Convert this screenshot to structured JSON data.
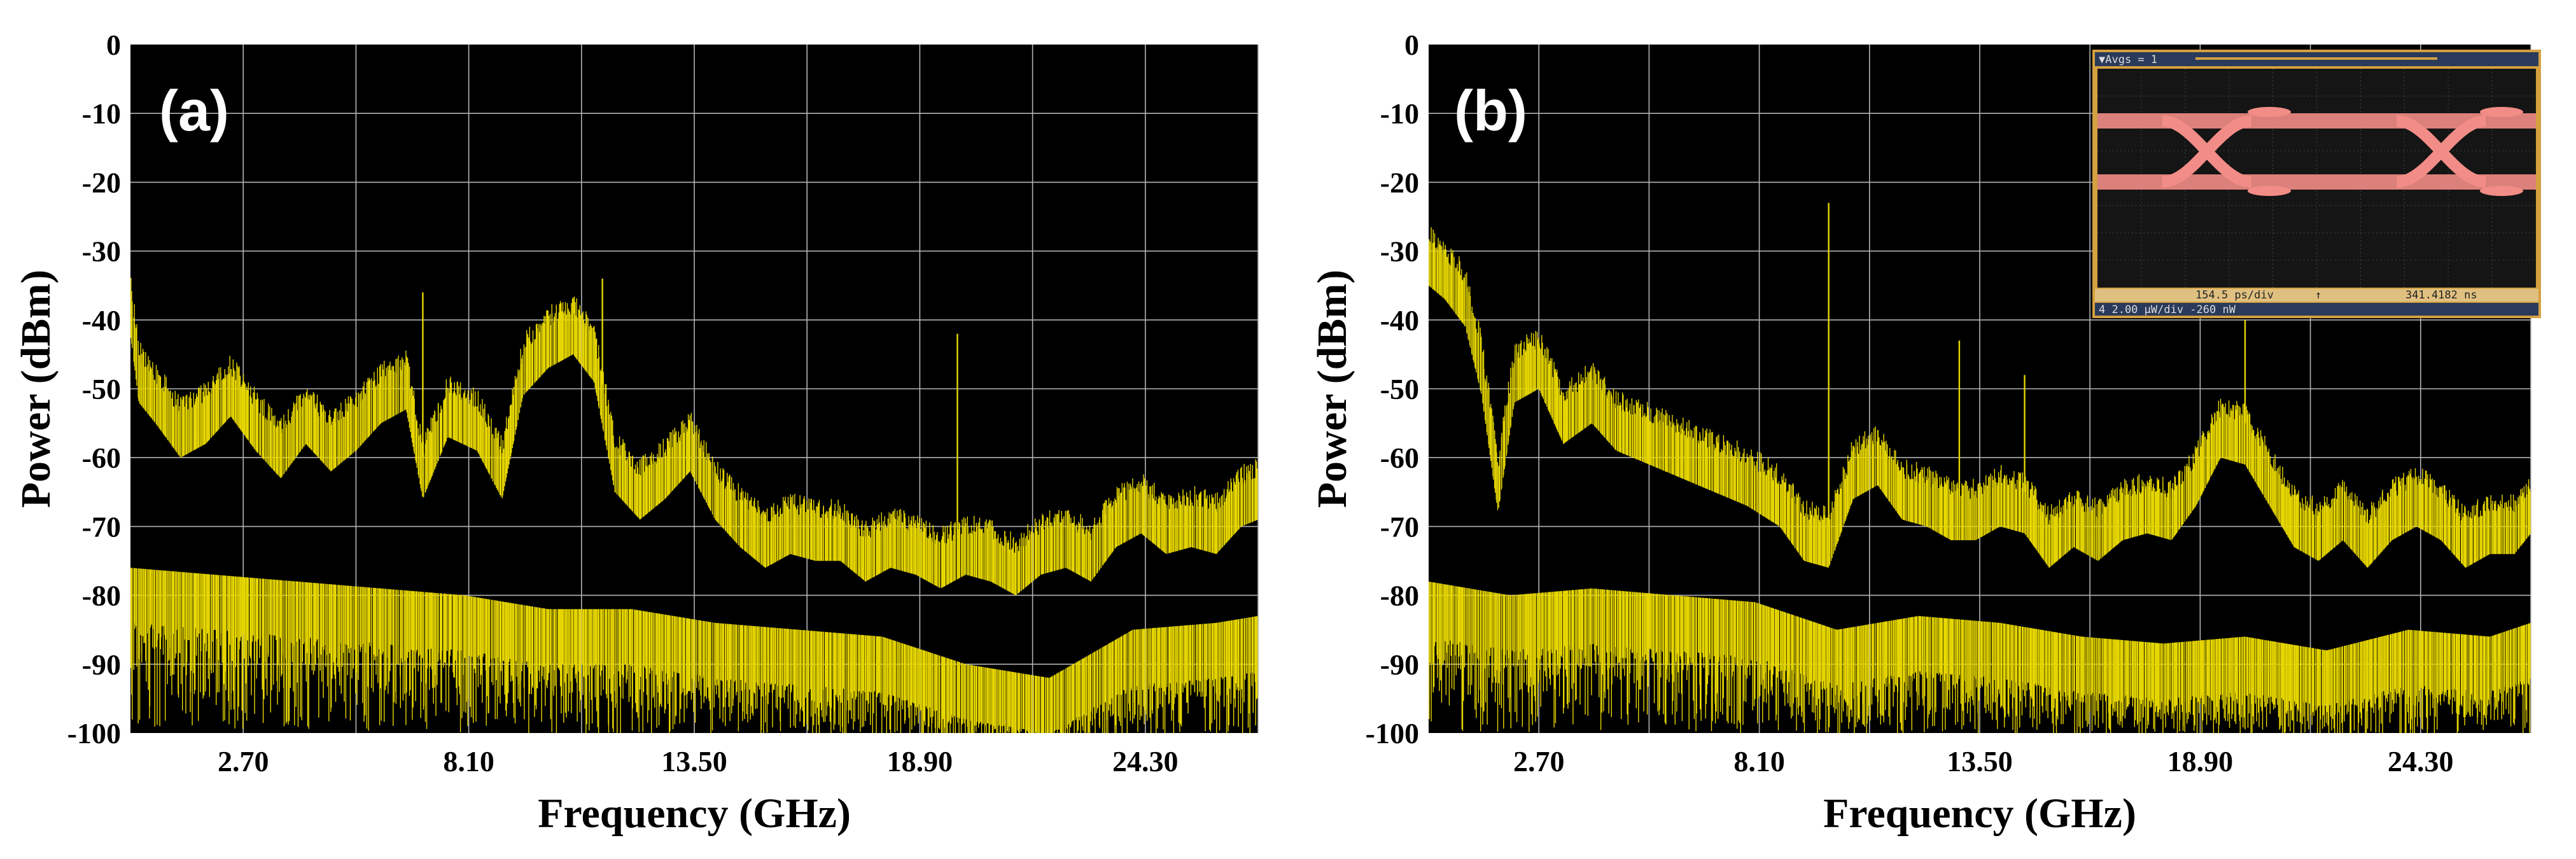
{
  "figure": {
    "colors": {
      "trace": "#e6d600",
      "plot_background": "#000000",
      "grid": "#b4b4b4",
      "eye_trace": "#f28c86",
      "inset_frame": "#d4a040"
    }
  },
  "chart_data": [
    {
      "type": "line",
      "panel_label": "(a)",
      "xlabel": "Frequency (GHz)",
      "ylabel": "Power (dBm)",
      "xlim": [
        0,
        27.0
      ],
      "ylim": [
        -100,
        0
      ],
      "x_ticks": [
        2.7,
        8.1,
        13.5,
        18.9,
        24.3
      ],
      "x_tick_labels": [
        "2.70",
        "8.10",
        "13.50",
        "18.90",
        "24.30"
      ],
      "y_ticks": [
        0,
        -10,
        -20,
        -30,
        -40,
        -50,
        -60,
        -70,
        -80,
        -90,
        -100
      ],
      "y_tick_labels": [
        "0",
        "-10",
        "-20",
        "-30",
        "-40",
        "-50",
        "-60",
        "-70",
        "-80",
        "-90",
        "-100"
      ],
      "grid": true,
      "series": [
        {
          "role": "peak-envelope",
          "x": [
            0,
            0.2,
            0.6,
            1.2,
            1.8,
            2.4,
            3.0,
            3.6,
            4.2,
            4.8,
            5.4,
            6.0,
            6.6,
            7.0,
            7.6,
            8.3,
            8.9,
            9.4,
            10.0,
            10.6,
            11.1,
            11.6,
            12.2,
            12.8,
            13.4,
            14.0,
            14.6,
            15.2,
            15.8,
            16.4,
            17.0,
            17.6,
            18.2,
            18.8,
            19.4,
            20.0,
            20.6,
            21.2,
            21.8,
            22.4,
            23.0,
            23.6,
            24.2,
            24.8,
            25.4,
            26.0,
            26.6,
            27.0
          ],
          "y": [
            -36,
            -46,
            -49,
            -54,
            -52,
            -48,
            -53,
            -57,
            -52,
            -56,
            -53,
            -49,
            -47,
            -60,
            -51,
            -53,
            -60,
            -45,
            -41,
            -39,
            -43,
            -59,
            -63,
            -60,
            -56,
            -63,
            -67,
            -70,
            -68,
            -69,
            -69,
            -72,
            -70,
            -71,
            -73,
            -71,
            -72,
            -74,
            -71,
            -70,
            -72,
            -67,
            -65,
            -68,
            -67,
            -68,
            -64,
            -63
          ]
        },
        {
          "role": "lower-noise-envelope",
          "x": [
            0,
            2,
            4,
            6,
            8,
            10,
            12,
            14,
            16,
            18,
            20,
            22,
            24,
            26,
            27
          ],
          "y": [
            -82,
            -83,
            -84,
            -85,
            -86,
            -88,
            -88,
            -90,
            -91,
            -92,
            -96,
            -98,
            -91,
            -90,
            -89
          ]
        }
      ],
      "spurs": [
        {
          "x": 7.0,
          "y": -36
        },
        {
          "x": 10.6,
          "y": -37
        },
        {
          "x": 11.3,
          "y": -34
        },
        {
          "x": 19.8,
          "y": -42
        },
        {
          "x": 16.3,
          "y": -66
        }
      ]
    },
    {
      "type": "line",
      "panel_label": "(b)",
      "xlabel": "Frequency (GHz)",
      "ylabel": "Power (dBm)",
      "xlim": [
        0,
        27.0
      ],
      "ylim": [
        -100,
        0
      ],
      "x_ticks": [
        2.7,
        8.1,
        13.5,
        18.9,
        24.3
      ],
      "x_tick_labels": [
        "2.70",
        "8.10",
        "13.50",
        "18.90",
        "24.30"
      ],
      "y_ticks": [
        0,
        -10,
        -20,
        -30,
        -40,
        -50,
        -60,
        -70,
        -80,
        -90,
        -100
      ],
      "y_tick_labels": [
        "0",
        "-10",
        "-20",
        "-30",
        "-40",
        "-50",
        "-60",
        "-70",
        "-80",
        "-90",
        "-100"
      ],
      "grid": true,
      "series": [
        {
          "role": "peak-envelope",
          "x": [
            0,
            0.4,
            0.9,
            1.3,
            1.7,
            2.1,
            2.7,
            3.3,
            4.0,
            4.6,
            5.4,
            6.2,
            7.0,
            7.8,
            8.6,
            9.2,
            9.8,
            10.4,
            11.0,
            11.6,
            12.2,
            12.8,
            13.4,
            14.0,
            14.6,
            15.2,
            15.8,
            16.4,
            17.0,
            17.6,
            18.2,
            18.8,
            19.4,
            20.0,
            20.6,
            21.2,
            21.8,
            22.4,
            23.0,
            23.6,
            24.2,
            24.8,
            25.4,
            26.0,
            26.6,
            27.0
          ],
          "y": [
            -29,
            -31,
            -35,
            -45,
            -62,
            -46,
            -44,
            -52,
            -49,
            -53,
            -55,
            -57,
            -59,
            -61,
            -64,
            -69,
            -70,
            -60,
            -58,
            -63,
            -64,
            -66,
            -66,
            -64,
            -65,
            -70,
            -67,
            -69,
            -66,
            -65,
            -66,
            -61,
            -54,
            -55,
            -61,
            -67,
            -69,
            -66,
            -70,
            -66,
            -64,
            -66,
            -70,
            -68,
            -68,
            -65
          ]
        },
        {
          "role": "lower-noise-envelope",
          "x": [
            0,
            2,
            4,
            6,
            8,
            10,
            12,
            14,
            16,
            18,
            20,
            22,
            24,
            26,
            27
          ],
          "y": [
            -84,
            -86,
            -85,
            -86,
            -87,
            -91,
            -89,
            -90,
            -92,
            -93,
            -92,
            -94,
            -91,
            -92,
            -90
          ]
        }
      ],
      "spurs": [
        {
          "x": 9.8,
          "y": -23
        },
        {
          "x": 13.0,
          "y": -43
        },
        {
          "x": 20.0,
          "y": -40
        },
        {
          "x": 14.6,
          "y": -48
        }
      ],
      "inset": {
        "type": "eye-diagram",
        "header_text": "▼Avgs = 1",
        "footer_row1": [
          "154.5 ps/div",
          "↑",
          "341.4182 ns"
        ],
        "footer_row2": "4  2.00 µW/div   -260 nW"
      }
    }
  ]
}
